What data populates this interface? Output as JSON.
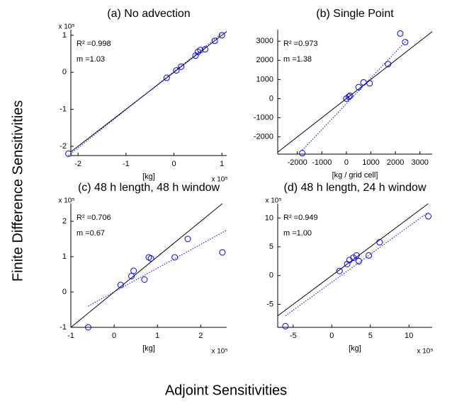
{
  "ylabel": "Finite Difference Sensitivities",
  "xlabel": "Adjoint Sensitivities",
  "chart_data": [
    {
      "type": "scatter",
      "title": "(a) No advection",
      "xlabel": "[kg]",
      "x_scale_label": "x 10⁵",
      "y_scale_label": "x 10⁵",
      "annotations": [
        "R² =0.998",
        "m =1.03"
      ],
      "color": "#0000ff",
      "identity_line": true,
      "xlim": [
        -2.15,
        1.1
      ],
      "ylim": [
        -2.25,
        1.15
      ],
      "xticks": [
        -2,
        -1,
        0,
        1
      ],
      "yticks": [
        -2,
        -1,
        0,
        1
      ],
      "x": [
        -2.2,
        -0.15,
        0.05,
        0.15,
        0.45,
        0.5,
        0.55,
        0.65,
        0.85,
        1.0
      ],
      "y": [
        -2.2,
        -0.15,
        0.05,
        0.15,
        0.45,
        0.55,
        0.6,
        0.62,
        0.85,
        1.0
      ],
      "fit_line": {
        "x": [
          -2.2,
          1.0
        ],
        "y": [
          -2.25,
          1.05
        ]
      }
    },
    {
      "type": "scatter",
      "title": "(b) Single Point",
      "xlabel": "[kg / grid cell]",
      "annotations": [
        "R² =0.973",
        "m =1.38"
      ],
      "color": "#0000ff",
      "identity_line": true,
      "xlim": [
        -2800,
        3500
      ],
      "ylim": [
        -2900,
        3600
      ],
      "xticks": [
        -2000,
        -1000,
        0,
        1000,
        2000,
        3000
      ],
      "yticks": [
        -2000,
        -1000,
        0,
        1000,
        2000,
        3000
      ],
      "x": [
        -1800,
        0,
        100,
        150,
        500,
        700,
        950,
        1700,
        2200,
        2400
      ],
      "y": [
        -2850,
        0,
        100,
        150,
        600,
        850,
        800,
        1800,
        3400,
        2950
      ],
      "fit_line": {
        "x": [
          -1800,
          2500
        ],
        "y": [
          -2700,
          3100
        ]
      }
    },
    {
      "type": "scatter",
      "title": "(c) 48 h length, 48 h window",
      "xlabel": "[kg]",
      "x_scale_label": "x 10⁵",
      "y_scale_label": "x 10⁵",
      "annotations": [
        "R² =0.706",
        "m =0.67"
      ],
      "color": "#0000ff",
      "identity_line": true,
      "xlim": [
        -1,
        2.6
      ],
      "ylim": [
        -1,
        2.5
      ],
      "xticks": [
        -1,
        0,
        1,
        2
      ],
      "yticks": [
        -1,
        0,
        1,
        2
      ],
      "x": [
        -0.6,
        0.15,
        0.4,
        0.45,
        0.7,
        0.8,
        0.85,
        1.4,
        1.7,
        2.5
      ],
      "y": [
        -1.0,
        0.2,
        0.45,
        0.6,
        0.35,
        0.98,
        0.95,
        0.98,
        1.5,
        1.12
      ],
      "fit_line": {
        "x": [
          -0.6,
          2.6
        ],
        "y": [
          -0.4,
          1.75
        ]
      }
    },
    {
      "type": "scatter",
      "title": "(d) 48 h length, 24 h window",
      "xlabel": "[kg]",
      "x_scale_label": "x 10⁵",
      "y_scale_label": "x 10⁵",
      "annotations": [
        "R² =0.949",
        "m =1.00"
      ],
      "color": "#0000ff",
      "identity_line": true,
      "xlim": [
        -7,
        13
      ],
      "ylim": [
        -9,
        12.5
      ],
      "xticks": [
        -5,
        0,
        5,
        10
      ],
      "yticks": [
        -5,
        0,
        5,
        10
      ],
      "x": [
        -6,
        1,
        2,
        2.3,
        2.8,
        3.2,
        3.5,
        4.8,
        6.2,
        12.5
      ],
      "y": [
        -8.8,
        0.8,
        2,
        2.7,
        3.1,
        3.5,
        2.5,
        3.5,
        5.8,
        10.3
      ],
      "fit_line": {
        "x": [
          -6,
          12.5
        ],
        "y": [
          -7,
          11
        ]
      }
    }
  ]
}
